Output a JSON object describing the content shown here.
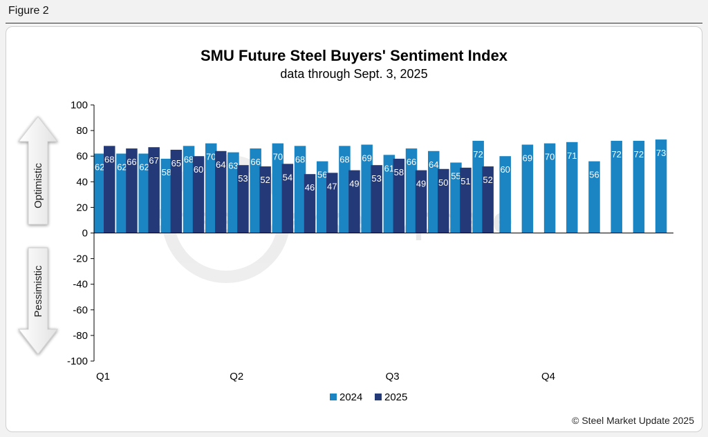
{
  "figure_label": "Figure 2",
  "copyright": "© Steel Market Update 2025",
  "watermark": "Steel Market Update",
  "colors": {
    "series_2024": "#1b84c3",
    "series_2025": "#243a78",
    "axis": "#000000",
    "label_text": "#ffffff"
  },
  "chart_data": {
    "type": "bar",
    "title": "SMU Future Steel Buyers' Sentiment Index",
    "subtitle": "data through Sept. 3, 2025",
    "ylim": [
      -100,
      100
    ],
    "yticks": [
      100,
      80,
      60,
      40,
      20,
      0,
      -20,
      -40,
      -60,
      -80,
      -100
    ],
    "grid": false,
    "legend_position": "bottom-center",
    "side_labels": {
      "positive": "Optimistic",
      "negative": "Pessimistic"
    },
    "quarters": [
      {
        "label": "Q1",
        "start_index": 0
      },
      {
        "label": "Q2",
        "start_index": 6
      },
      {
        "label": "Q3",
        "start_index": 13
      },
      {
        "label": "Q4",
        "start_index": 20
      }
    ],
    "series": [
      {
        "name": "2024",
        "values": [
          62,
          62,
          62,
          58,
          68,
          70,
          63,
          66,
          70,
          68,
          56,
          68,
          69,
          61,
          66,
          64,
          55,
          72,
          60,
          69,
          70,
          71,
          56,
          72,
          72,
          73
        ]
      },
      {
        "name": "2025",
        "values": [
          68,
          66,
          67,
          65,
          60,
          64,
          53,
          52,
          54,
          46,
          47,
          49,
          53,
          58,
          49,
          50,
          51,
          52
        ]
      }
    ]
  }
}
